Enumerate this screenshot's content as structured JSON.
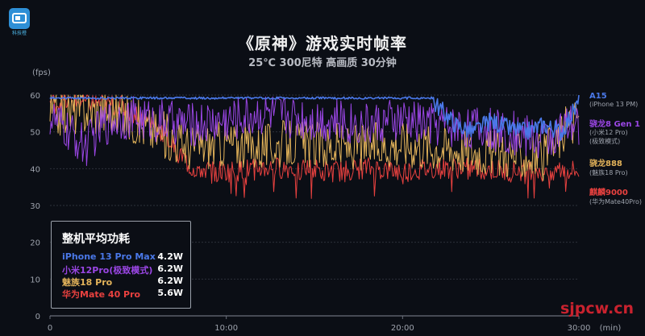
{
  "header": {
    "title": "《原神》游戏实时帧率",
    "subtitle": "25℃ 300尼特 高画质 30分钟",
    "logo_text": "科技橙"
  },
  "colors": {
    "background": "#0b0e15",
    "A15": "#4a78e8",
    "snapdragon8gen1": "#9a46e4",
    "snapdragon888": "#e3b35a",
    "kirin9000": "#e8413f"
  },
  "chart_data": {
    "type": "line",
    "title": "《原神》游戏实时帧率",
    "subtitle": "25℃ 300尼特 高画质 30分钟",
    "ylabel": "(fps)",
    "xlabel": "(min)",
    "ylim": [
      0,
      60
    ],
    "xlim": [
      0,
      30
    ],
    "yticks": [
      "0",
      "10",
      "20",
      "30",
      "40",
      "50",
      "60"
    ],
    "xticks": [
      {
        "v": 0,
        "label": "0"
      },
      {
        "v": 10,
        "label": "10:00"
      },
      {
        "v": 20,
        "label": "20:00"
      },
      {
        "v": 30,
        "label": "30:00"
      }
    ],
    "grid": true,
    "legend_position": "right",
    "series": [
      {
        "name": "A15",
        "sublabel": [
          "(iPhone 13 PM)"
        ],
        "color": "#4a78e8",
        "x": [
          0,
          2,
          4,
          6,
          8,
          10,
          12,
          14,
          16,
          18,
          20,
          21,
          22,
          23,
          24,
          25,
          26,
          27,
          28,
          29,
          30
        ],
        "values": [
          59.5,
          59.5,
          59.5,
          59.5,
          59.5,
          59.5,
          59.5,
          59.5,
          59.5,
          59.5,
          59.5,
          59.5,
          57,
          52,
          50,
          53,
          51,
          50,
          52,
          50,
          58
        ]
      },
      {
        "name": "骁龙8 Gen 1",
        "sublabel": [
          "(小米12 Pro)",
          "(极致模式)"
        ],
        "color": "#9a46e4",
        "x": [
          0,
          1,
          2,
          3,
          4,
          6,
          8,
          10,
          12,
          14,
          16,
          18,
          20,
          22,
          24,
          26,
          28,
          30
        ],
        "values": [
          54,
          50,
          46,
          52,
          54,
          53,
          52,
          53,
          55,
          54,
          53,
          52,
          53,
          52,
          51,
          50,
          48,
          52
        ]
      },
      {
        "name": "骁龙888",
        "sublabel": [
          "(魅族18 Pro)"
        ],
        "color": "#e3b35a",
        "x": [
          0,
          2,
          4,
          6,
          8,
          10,
          12,
          14,
          16,
          18,
          20,
          22,
          24,
          26,
          28,
          30
        ],
        "values": [
          55,
          56,
          55,
          50,
          46,
          47,
          46,
          47,
          46,
          46,
          47,
          46,
          45,
          44,
          43,
          55
        ]
      },
      {
        "name": "麒麟9000",
        "sublabel": [
          "(华为Mate40Pro)"
        ],
        "color": "#e8413f",
        "x": [
          0,
          2,
          4,
          6,
          8,
          10,
          12,
          14,
          16,
          18,
          20,
          22,
          24,
          26,
          28,
          30
        ],
        "values": [
          58,
          58,
          57,
          52,
          40,
          39,
          40,
          40,
          39,
          40,
          39,
          40,
          40,
          39,
          40,
          39
        ]
      }
    ]
  },
  "power_box": {
    "title": "整机平均功耗",
    "rows": [
      {
        "name": "iPhone 13 Pro Max",
        "value": "4.2W",
        "color": "#4a78e8"
      },
      {
        "name": "小米12Pro(极致模式)",
        "value": "6.2W",
        "color": "#9a46e4"
      },
      {
        "name": "魅族18 Pro",
        "value": "6.2W",
        "color": "#e3b35a"
      },
      {
        "name": "华为Mate 40 Pro",
        "value": "5.6W",
        "color": "#e8413f"
      }
    ]
  },
  "watermark": "sjpcw.cn"
}
